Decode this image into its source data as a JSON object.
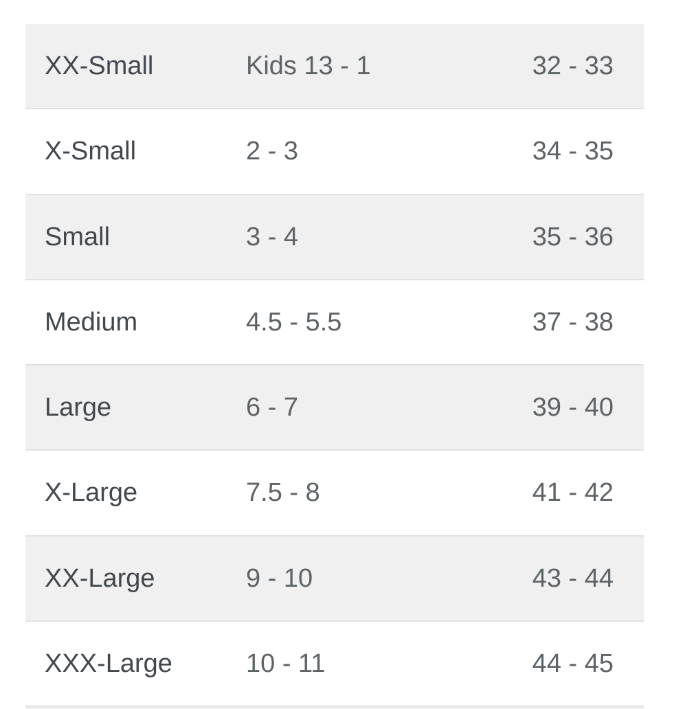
{
  "size_chart": {
    "rows": [
      {
        "size": "XX-Small",
        "us": "Kids 13 - 1",
        "eu": "32 - 33"
      },
      {
        "size": "X-Small",
        "us": "2 - 3",
        "eu": "34 - 35"
      },
      {
        "size": "Small",
        "us": "3 - 4",
        "eu": "35 - 36"
      },
      {
        "size": "Medium",
        "us": "4.5 - 5.5",
        "eu": "37 - 38"
      },
      {
        "size": "Large",
        "us": "6 - 7",
        "eu": "39 - 40"
      },
      {
        "size": "X-Large",
        "us": "7.5 - 8",
        "eu": "41 - 42"
      },
      {
        "size": "XX-Large",
        "us": "9 - 10",
        "eu": "43 - 44"
      },
      {
        "size": "XXX-Large",
        "us": "10 - 11",
        "eu": "44 - 45"
      }
    ],
    "colors": {
      "row_alt_bg": "#f0f0f1",
      "row_bg": "#ffffff",
      "row_border": "#dfe2e5",
      "size_text": "#42484d",
      "value_text": "#5d6366"
    }
  }
}
